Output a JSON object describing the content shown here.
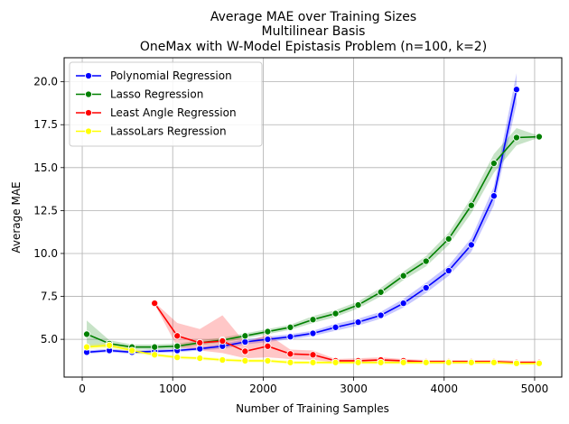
{
  "chart_data": {
    "type": "line",
    "title": [
      "Average MAE over Training Sizes",
      "Multilinear Basis",
      "OneMax with W-Model Epistasis Problem (n=100, k=2)"
    ],
    "xlabel": "Number of Training Samples",
    "ylabel": "Average MAE",
    "xlim": [
      -200,
      5300
    ],
    "ylim": [
      2.8,
      21.4
    ],
    "xticks": [
      0,
      1000,
      2000,
      3000,
      4000,
      5000
    ],
    "yticks": [
      5.0,
      7.5,
      10.0,
      12.5,
      15.0,
      17.5,
      20.0
    ],
    "grid": true,
    "legend_position": "top-left",
    "series": [
      {
        "name": "Polynomial Regression",
        "color": "#0000ff",
        "x": [
          50,
          300,
          550,
          800,
          1050,
          1300,
          1550,
          1800,
          2050,
          2300,
          2550,
          2800,
          3050,
          3300,
          3550,
          3800,
          4050,
          4300,
          4550,
          4800
        ],
        "y": [
          4.25,
          4.35,
          4.25,
          4.3,
          4.35,
          4.45,
          4.6,
          4.85,
          5.0,
          5.15,
          5.35,
          5.7,
          6.0,
          6.4,
          7.1,
          8.0,
          9.0,
          10.5,
          13.35,
          19.55
        ],
        "lower": [
          4.15,
          4.25,
          4.15,
          4.2,
          4.25,
          4.35,
          4.45,
          4.7,
          4.85,
          5.0,
          5.2,
          5.5,
          5.8,
          6.2,
          6.85,
          7.7,
          8.7,
          10.1,
          12.8,
          18.7
        ],
        "upper": [
          4.35,
          4.45,
          4.35,
          4.4,
          4.45,
          4.55,
          4.75,
          5.0,
          5.15,
          5.3,
          5.5,
          5.9,
          6.2,
          6.6,
          7.35,
          8.3,
          9.3,
          10.9,
          13.9,
          20.5
        ]
      },
      {
        "name": "Lasso Regression",
        "color": "#008000",
        "x": [
          50,
          300,
          550,
          800,
          1050,
          1300,
          1550,
          1800,
          2050,
          2300,
          2550,
          2800,
          3050,
          3300,
          3550,
          3800,
          4050,
          4300,
          4550,
          4800,
          5050
        ],
        "y": [
          5.3,
          4.75,
          4.55,
          4.55,
          4.6,
          4.8,
          4.95,
          5.2,
          5.45,
          5.7,
          6.15,
          6.5,
          7.0,
          7.75,
          8.7,
          9.55,
          10.85,
          12.8,
          15.25,
          16.75,
          16.8
        ],
        "lower": [
          4.6,
          4.55,
          4.4,
          4.4,
          4.45,
          4.65,
          4.8,
          5.05,
          5.3,
          5.55,
          5.95,
          6.3,
          6.8,
          7.5,
          8.45,
          9.25,
          10.5,
          12.35,
          14.7,
          16.3,
          16.75
        ],
        "upper": [
          6.1,
          4.95,
          4.7,
          4.7,
          4.75,
          4.95,
          5.1,
          5.35,
          5.6,
          5.85,
          6.35,
          6.7,
          7.2,
          8.0,
          8.95,
          9.85,
          11.2,
          13.25,
          15.8,
          17.3,
          16.85
        ]
      },
      {
        "name": "Least Angle Regression",
        "color": "#ff0000",
        "x": [
          800,
          1050,
          1300,
          1550,
          1800,
          2050,
          2300,
          2550,
          2800,
          3050,
          3300,
          3550,
          3800,
          4050,
          4300,
          4550,
          4800,
          5050
        ],
        "y": [
          7.1,
          5.2,
          4.8,
          4.9,
          4.3,
          4.6,
          4.15,
          4.1,
          3.75,
          3.75,
          3.8,
          3.75,
          3.7,
          3.7,
          3.7,
          3.7,
          3.65,
          3.65
        ],
        "lower": [
          7.05,
          4.55,
          4.35,
          4.2,
          3.9,
          3.95,
          3.85,
          3.8,
          3.65,
          3.65,
          3.65,
          3.65,
          3.6,
          3.6,
          3.6,
          3.6,
          3.6,
          3.6
        ],
        "upper": [
          7.15,
          5.95,
          5.6,
          6.4,
          4.8,
          5.3,
          4.4,
          4.35,
          3.85,
          3.9,
          3.95,
          3.85,
          3.8,
          3.8,
          3.8,
          3.8,
          3.75,
          3.75
        ]
      },
      {
        "name": "LassoLars Regression",
        "color": "#ffff00",
        "x": [
          50,
          300,
          550,
          800,
          1050,
          1300,
          1550,
          1800,
          2050,
          2300,
          2550,
          2800,
          3050,
          3300,
          3550,
          3800,
          4050,
          4300,
          4550,
          4800,
          5050
        ],
        "y": [
          4.55,
          4.65,
          4.35,
          4.1,
          3.95,
          3.9,
          3.8,
          3.75,
          3.75,
          3.65,
          3.65,
          3.65,
          3.65,
          3.65,
          3.65,
          3.65,
          3.65,
          3.65,
          3.65,
          3.6,
          3.6
        ],
        "lower": [
          4.4,
          4.5,
          4.2,
          4.0,
          3.85,
          3.8,
          3.7,
          3.65,
          3.65,
          3.55,
          3.55,
          3.55,
          3.55,
          3.55,
          3.55,
          3.55,
          3.55,
          3.55,
          3.55,
          3.5,
          3.5
        ],
        "upper": [
          4.7,
          4.8,
          4.5,
          4.2,
          4.05,
          4.0,
          3.9,
          3.85,
          3.85,
          3.75,
          3.75,
          3.75,
          3.75,
          3.75,
          3.75,
          3.75,
          3.75,
          3.75,
          3.75,
          3.7,
          3.7
        ]
      }
    ]
  }
}
